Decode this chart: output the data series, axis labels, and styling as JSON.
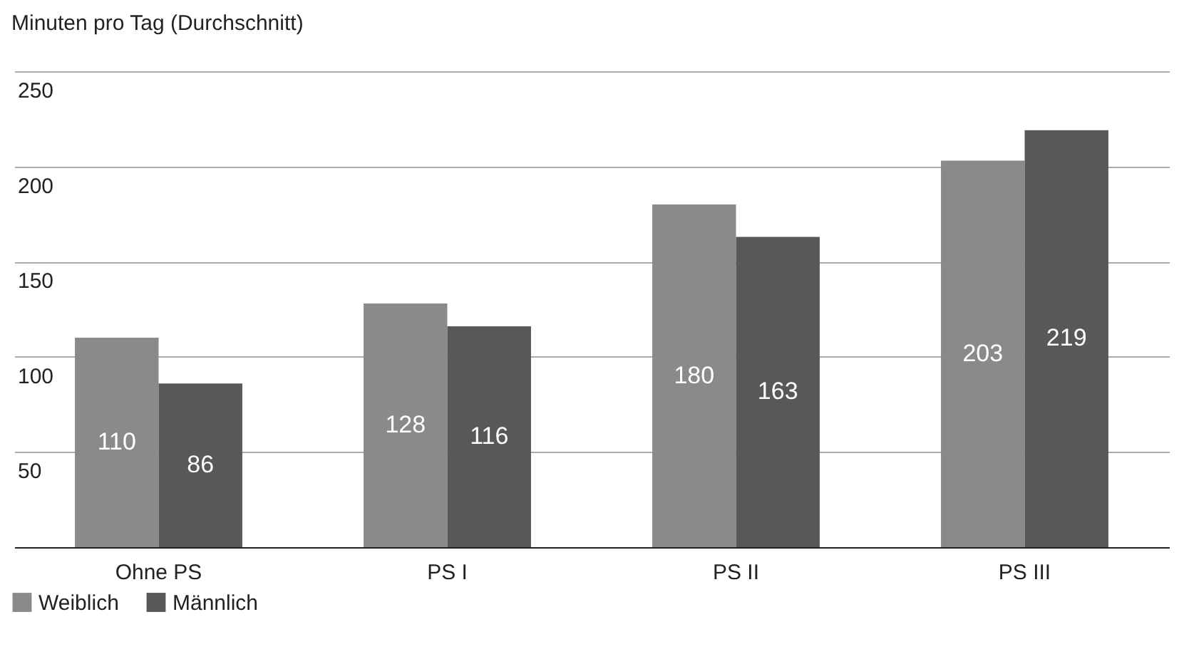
{
  "chart_data": {
    "type": "bar",
    "title": "Minuten pro Tag (Durchschnitt)",
    "categories": [
      "Ohne PS",
      "PS I",
      "PS II",
      "PS III"
    ],
    "series": [
      {
        "name": "Weiblich",
        "color": "#8a8a8d",
        "values": [
          110,
          128,
          180,
          203
        ]
      },
      {
        "name": "Männlich",
        "color": "#58585a",
        "values": [
          86,
          116,
          163,
          219
        ]
      }
    ],
    "ylim": [
      0,
      250
    ],
    "yticks": [
      50,
      100,
      150,
      200,
      250
    ],
    "grid": "y",
    "legend": "bottom left",
    "data_labels": true
  }
}
